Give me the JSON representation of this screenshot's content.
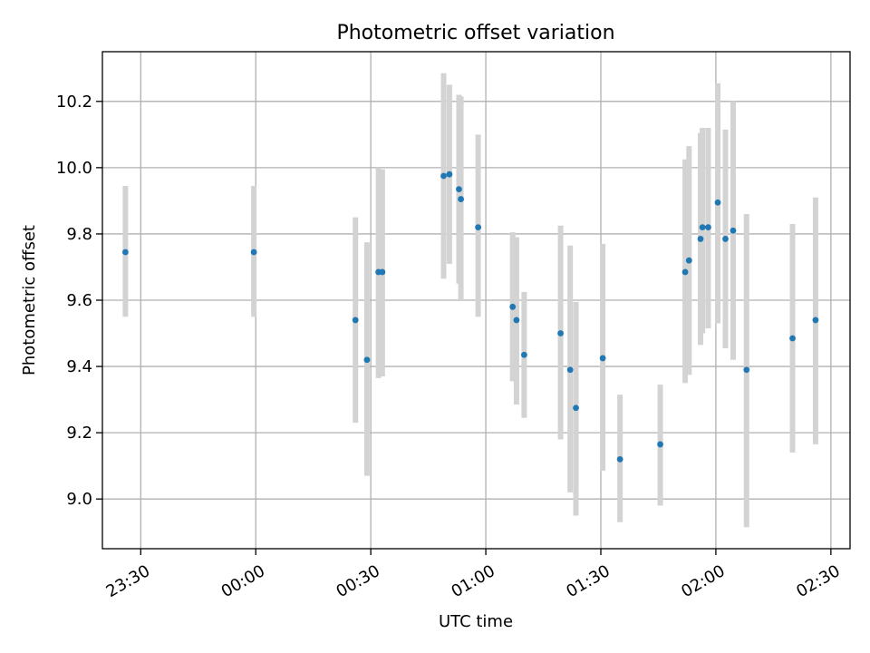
{
  "chart_data": {
    "type": "scatter",
    "title": "Photometric offset variation",
    "xlabel": "UTC time",
    "ylabel": "Photometric offset",
    "x_axis": {
      "type": "time",
      "range": [
        "23:20",
        "02:35"
      ],
      "ticks": [
        "23:30",
        "00:00",
        "00:30",
        "01:00",
        "01:30",
        "02:00",
        "02:30"
      ]
    },
    "y_axis": {
      "range": [
        8.85,
        10.35
      ],
      "ticks": [
        "9.0",
        "9.2",
        "9.4",
        "9.6",
        "9.8",
        "10.0",
        "10.2"
      ]
    },
    "grid": true,
    "marker_color": "#1f77b4",
    "errorbar_color": "#d3d3d3",
    "points": [
      {
        "x": "23:26",
        "y": 9.745,
        "low": 9.55,
        "high": 9.945
      },
      {
        "x": "23:59.5",
        "y": 9.745,
        "low": 9.55,
        "high": 9.945
      },
      {
        "x": "00:26",
        "y": 9.54,
        "low": 9.23,
        "high": 9.85
      },
      {
        "x": "00:29",
        "y": 9.42,
        "low": 9.07,
        "high": 9.775
      },
      {
        "x": "00:32",
        "y": 9.685,
        "low": 9.365,
        "high": 10.0
      },
      {
        "x": "00:33",
        "y": 9.685,
        "low": 9.37,
        "high": 9.995
      },
      {
        "x": "00:49",
        "y": 9.975,
        "low": 9.665,
        "high": 10.285
      },
      {
        "x": "00:50.5",
        "y": 9.98,
        "low": 9.71,
        "high": 10.25
      },
      {
        "x": "00:53",
        "y": 9.935,
        "low": 9.65,
        "high": 10.22
      },
      {
        "x": "00:53.5",
        "y": 9.905,
        "low": 9.6,
        "high": 10.215
      },
      {
        "x": "00:58",
        "y": 9.82,
        "low": 9.55,
        "high": 10.1
      },
      {
        "x": "01:07",
        "y": 9.58,
        "low": 9.355,
        "high": 9.805
      },
      {
        "x": "01:08",
        "y": 9.54,
        "low": 9.285,
        "high": 9.79
      },
      {
        "x": "01:10",
        "y": 9.435,
        "low": 9.245,
        "high": 9.625
      },
      {
        "x": "01:19.5",
        "y": 9.5,
        "low": 9.18,
        "high": 9.825
      },
      {
        "x": "01:22",
        "y": 9.39,
        "low": 9.02,
        "high": 9.765
      },
      {
        "x": "01:23.5",
        "y": 9.275,
        "low": 8.95,
        "high": 9.595
      },
      {
        "x": "01:30.5",
        "y": 9.425,
        "low": 9.085,
        "high": 9.77
      },
      {
        "x": "01:35",
        "y": 9.12,
        "low": 8.93,
        "high": 9.315
      },
      {
        "x": "01:45.5",
        "y": 9.165,
        "low": 8.98,
        "high": 9.345
      },
      {
        "x": "01:52",
        "y": 9.685,
        "low": 9.35,
        "high": 10.025
      },
      {
        "x": "01:53",
        "y": 9.72,
        "low": 9.375,
        "high": 10.065
      },
      {
        "x": "01:56",
        "y": 9.785,
        "low": 9.465,
        "high": 10.105
      },
      {
        "x": "01:56.5",
        "y": 9.82,
        "low": 9.5,
        "high": 10.12
      },
      {
        "x": "01:58",
        "y": 9.82,
        "low": 9.515,
        "high": 10.12
      },
      {
        "x": "02:00.5",
        "y": 9.895,
        "low": 9.53,
        "high": 10.255
      },
      {
        "x": "02:02.5",
        "y": 9.785,
        "low": 9.455,
        "high": 10.115
      },
      {
        "x": "02:04.5",
        "y": 9.81,
        "low": 9.42,
        "high": 10.2
      },
      {
        "x": "02:08",
        "y": 9.39,
        "low": 8.915,
        "high": 9.86
      },
      {
        "x": "02:20",
        "y": 9.485,
        "low": 9.14,
        "high": 9.83
      },
      {
        "x": "02:26",
        "y": 9.54,
        "low": 9.165,
        "high": 9.91
      }
    ]
  }
}
